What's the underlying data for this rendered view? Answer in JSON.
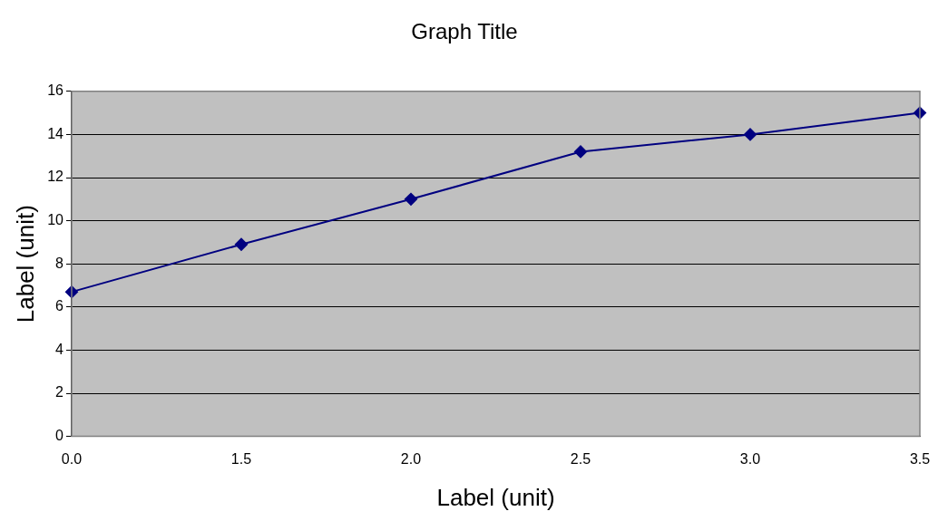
{
  "chart_data": {
    "type": "line",
    "title": "Graph Title",
    "xlabel": "Label (unit)",
    "ylabel": "Label (unit)",
    "categories": [
      "0.0",
      "1.5",
      "2.0",
      "2.5",
      "3.0",
      "3.5"
    ],
    "series": [
      {
        "color": "#000080",
        "values": [
          6.7,
          8.9,
          11,
          13.2,
          14,
          15
        ]
      }
    ],
    "ylim": [
      0,
      16
    ],
    "yticks": [
      0,
      2,
      4,
      6,
      8,
      10,
      12,
      14,
      16
    ],
    "grid": "y",
    "legend": false,
    "marker": "diamond",
    "line_style": "solid"
  }
}
